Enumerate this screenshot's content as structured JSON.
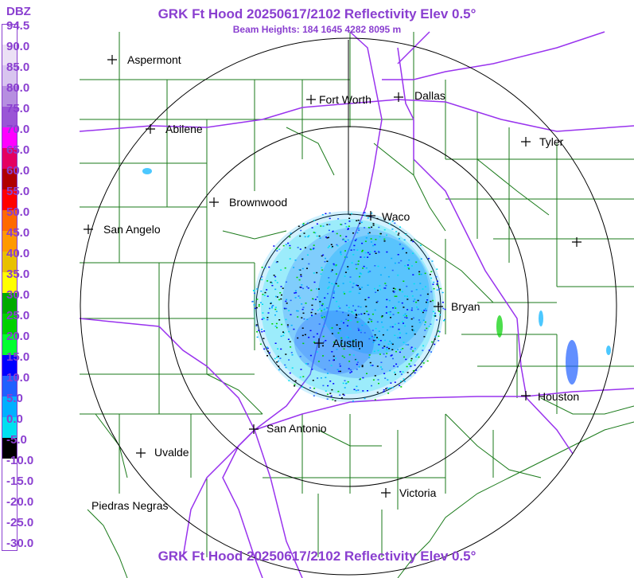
{
  "header": {
    "title": "GRK Ft Hood 20250617/2102 Reflectivity Elev 0.5°",
    "subtitle": "Beam Heights: 184 1645 4282 8095 m"
  },
  "footer": {
    "title": "GRK Ft Hood 20250617/2102 Reflectivity Elev 0.5°"
  },
  "legend": {
    "unit": "DBZ",
    "labels": [
      "94.5",
      "90.0",
      "85.0",
      "80.0",
      "75.0",
      "70.0",
      "65.0",
      "60.0",
      "55.0",
      "50.0",
      "45.0",
      "40.0",
      "35.0",
      "30.0",
      "25.0",
      "20.0",
      "15.0",
      "10.0",
      "5.0",
      "0.0",
      "-5.0",
      "-10.0",
      "-15.0",
      "-20.0",
      "-25.0",
      "-30.0"
    ],
    "colors": [
      "#ffffff",
      "#ebe0f5",
      "#d8c4ef",
      "#b68ee0",
      "#9a55d6",
      "#ff00ff",
      "#e40060",
      "#b00000",
      "#ff0000",
      "#ff6a00",
      "#ff9900",
      "#e8c000",
      "#ffff00",
      "#00aa00",
      "#00d000",
      "#00ff30",
      "#0000ff",
      "#2060ff",
      "#00b0ff",
      "#00e0f0",
      "#000000",
      "#ffffff",
      "#ffffff",
      "#ffffff",
      "#ffffff",
      "#ffffff"
    ]
  },
  "cities": [
    {
      "name": "Aspermont"
    },
    {
      "name": "Fort Worth"
    },
    {
      "name": "Dallas"
    },
    {
      "name": "Abilene"
    },
    {
      "name": "Tyler"
    },
    {
      "name": "Brownwood"
    },
    {
      "name": "Waco"
    },
    {
      "name": "San Angelo"
    },
    {
      "name": "Bryan"
    },
    {
      "name": "Austin"
    },
    {
      "name": "Houston"
    },
    {
      "name": "San Antonio"
    },
    {
      "name": "Uvalde"
    },
    {
      "name": "Victoria"
    },
    {
      "name": "Piedras Negras"
    }
  ],
  "colors": {
    "accent": "#8a3fd0",
    "highway": "#9933ee",
    "county": "#1a7a1a",
    "range_ring": "#000000"
  }
}
